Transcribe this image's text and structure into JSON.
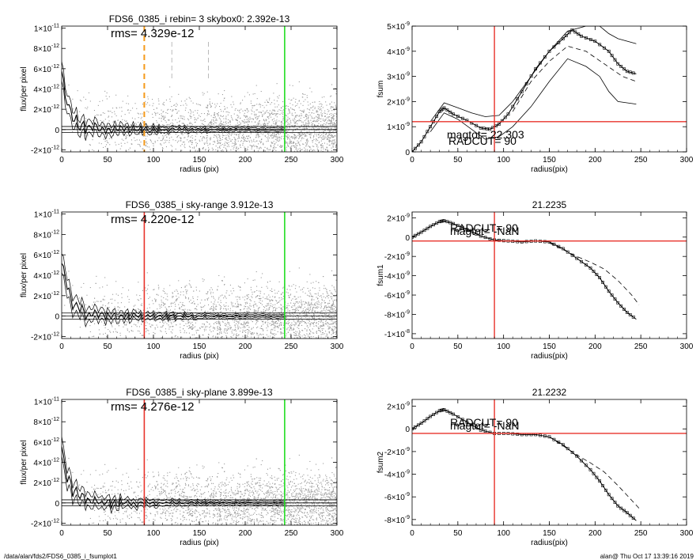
{
  "footer": {
    "left": "/data/alan/fds2/FDS6_0385_i_fsumplot1",
    "right": "alan@  Thu Oct 17 13:39:16 2019"
  },
  "colors": {
    "red": "#e8332b",
    "green": "#22dd22",
    "orange": "#f59a1a",
    "scatter": "#9a9a9a",
    "profile": "#000000"
  },
  "chart_data": [
    {
      "type": "scatter",
      "panel": "left-1",
      "title": "FDS6_0385_i rebin= 3    skybox0:  2.392e-13",
      "annotation": "rms= 4.329e-12",
      "xlabel": "radius (pix)",
      "ylabel": "flux/per pixel",
      "xlim": [
        0,
        300
      ],
      "ylim": [
        -2.2e-12,
        1.02e-11
      ],
      "xticks": [
        "0",
        "50",
        "100",
        "150",
        "200",
        "250",
        "300"
      ],
      "yticks": [
        {
          "v": -2e-12,
          "m": "-2×10",
          "e": "-12"
        },
        {
          "v": 0,
          "m": "0",
          "e": ""
        },
        {
          "v": 2e-12,
          "m": "2×10",
          "e": "-12"
        },
        {
          "v": 4e-12,
          "m": "4×10",
          "e": "-12"
        },
        {
          "v": 6e-12,
          "m": "6×10",
          "e": "-12"
        },
        {
          "v": 8e-12,
          "m": "8×10",
          "e": "-12"
        },
        {
          "v": 1e-11,
          "m": "1×10",
          "e": "-11"
        }
      ],
      "vlines": [
        {
          "x": 90,
          "color": "orange",
          "dash": true
        },
        {
          "x": 243,
          "color": "green",
          "dash": false
        }
      ],
      "gray_dashes": [
        120,
        160
      ],
      "hlines": [
        0,
        3e-13,
        -3e-13
      ],
      "scatter_radius_max": 300,
      "scatter_points": 2600
    },
    {
      "type": "scatter",
      "panel": "left-2",
      "title": "FDS6_0385_i sky-range  3.912e-13",
      "annotation": "rms= 4.220e-12",
      "xlabel": "radius (pix)",
      "ylabel": "flux/per pixel",
      "xlim": [
        0,
        300
      ],
      "ylim": [
        -2.2e-12,
        1.02e-11
      ],
      "xticks": [
        "0",
        "50",
        "100",
        "150",
        "200",
        "250",
        "300"
      ],
      "yticks": [
        {
          "v": -2e-12,
          "m": "-2×10",
          "e": "-12"
        },
        {
          "v": 0,
          "m": "0",
          "e": ""
        },
        {
          "v": 2e-12,
          "m": "2×10",
          "e": "-12"
        },
        {
          "v": 4e-12,
          "m": "4×10",
          "e": "-12"
        },
        {
          "v": 6e-12,
          "m": "6×10",
          "e": "-12"
        },
        {
          "v": 8e-12,
          "m": "8×10",
          "e": "-12"
        },
        {
          "v": 1e-11,
          "m": "1×10",
          "e": "-11"
        }
      ],
      "vlines": [
        {
          "x": 90,
          "color": "red",
          "dash": false
        },
        {
          "x": 243,
          "color": "green",
          "dash": false
        }
      ],
      "gray_dashes": [],
      "hlines": [
        0,
        3e-13,
        -3e-13
      ],
      "scatter_radius_max": 300,
      "scatter_points": 2600
    },
    {
      "type": "scatter",
      "panel": "left-3",
      "title": "FDS6_0385_i sky-plane  3.899e-13",
      "annotation": "rms= 4.276e-12",
      "xlabel": "radius (pix)",
      "ylabel": "flux/per pixel",
      "xlim": [
        0,
        300
      ],
      "ylim": [
        -2.2e-12,
        1.02e-11
      ],
      "xticks": [
        "0",
        "50",
        "100",
        "150",
        "200",
        "250",
        "300"
      ],
      "yticks": [
        {
          "v": -2e-12,
          "m": "-2×10",
          "e": "-12"
        },
        {
          "v": 0,
          "m": "0",
          "e": ""
        },
        {
          "v": 2e-12,
          "m": "2×10",
          "e": "-12"
        },
        {
          "v": 4e-12,
          "m": "4×10",
          "e": "-12"
        },
        {
          "v": 6e-12,
          "m": "6×10",
          "e": "-12"
        },
        {
          "v": 8e-12,
          "m": "8×10",
          "e": "-12"
        },
        {
          "v": 1e-11,
          "m": "1×10",
          "e": "-11"
        }
      ],
      "vlines": [
        {
          "x": 90,
          "color": "red",
          "dash": false
        },
        {
          "x": 243,
          "color": "green",
          "dash": false
        }
      ],
      "gray_dashes": [],
      "hlines": [
        0,
        3e-13,
        -3e-13
      ],
      "scatter_radius_max": 300,
      "scatter_points": 2600
    },
    {
      "type": "line",
      "panel": "right-1",
      "title": "",
      "annotations": [
        "magtot=  22.303",
        "RADCUT=  90"
      ],
      "xlabel": "radius(pix)",
      "ylabel": "fsum",
      "xlim": [
        0,
        300
      ],
      "ylim": [
        0,
        5e-09
      ],
      "xticks": [
        "0",
        "50",
        "100",
        "150",
        "200",
        "250",
        "300"
      ],
      "yticks": [
        {
          "v": 0,
          "m": "0",
          "e": ""
        },
        {
          "v": 1e-09,
          "m": "1×10",
          "e": "-9"
        },
        {
          "v": 2e-09,
          "m": "2×10",
          "e": "-9"
        },
        {
          "v": 3e-09,
          "m": "3×10",
          "e": "-9"
        },
        {
          "v": 4e-09,
          "m": "4×10",
          "e": "-9"
        },
        {
          "v": 5e-09,
          "m": "5×10",
          "e": "-9"
        }
      ],
      "vline_x": 90,
      "hline_y": 1.2e-09,
      "curve": {
        "x": [
          0,
          10,
          20,
          30,
          35,
          45,
          60,
          75,
          85,
          95,
          105,
          120,
          135,
          150,
          165,
          175,
          185,
          200,
          215,
          225,
          235,
          245
        ],
        "y": [
          0,
          4e-10,
          1e-09,
          1.6e-09,
          1.75e-09,
          1.5e-09,
          1.25e-09,
          9.5e-10,
          9e-10,
          1.1e-09,
          1.5e-09,
          2.4e-09,
          3.3e-09,
          4e-09,
          4.5e-09,
          4.85e-09,
          4.6e-09,
          4.4e-09,
          4e-09,
          3.5e-09,
          3.2e-09,
          3.1e-09
        ]
      },
      "dashed": {
        "x": [
          110,
          130,
          150,
          170,
          190,
          210,
          230,
          245
        ],
        "y": [
          1.6e-09,
          2.8e-09,
          3.6e-09,
          4.2e-09,
          4e-09,
          3.5e-09,
          3e-09,
          2.8e-09
        ]
      },
      "upper": {
        "x": [
          20,
          35,
          50,
          65,
          80,
          95,
          110,
          130,
          150,
          170,
          190,
          205,
          215,
          225,
          245
        ],
        "y": [
          1.2e-09,
          1.95e-09,
          1.75e-09,
          1.55e-09,
          1.4e-09,
          1.45e-09,
          2e-09,
          3e-09,
          4e-09,
          4.8e-09,
          5e-09,
          5e-09,
          4.7e-09,
          4.5e-09,
          4.3e-09
        ]
      },
      "lower": {
        "x": [
          20,
          35,
          50,
          65,
          80,
          95,
          110,
          130,
          150,
          170,
          190,
          205,
          215,
          225,
          245
        ],
        "y": [
          8e-10,
          1.55e-09,
          1.3e-09,
          9e-10,
          5e-10,
          6e-10,
          1e-09,
          1.8e-09,
          2.8e-09,
          3.7e-09,
          3.4e-09,
          3e-09,
          2.4e-09,
          2e-09,
          1.9e-09
        ]
      }
    },
    {
      "type": "line",
      "panel": "right-2",
      "title": "21.2235",
      "annotations": [
        "magtot=  -NaN",
        "RADCUT=  90"
      ],
      "xlabel": "radius(pix)",
      "ylabel": "fsum1",
      "xlim": [
        0,
        300
      ],
      "ylim": [
        -1.05e-08,
        2.6e-09
      ],
      "xticks": [
        "0",
        "50",
        "100",
        "150",
        "200",
        "250",
        "300"
      ],
      "yticks": [
        {
          "v": -1e-08,
          "m": "-1×10",
          "e": "-8"
        },
        {
          "v": -8e-09,
          "m": "-8×10",
          "e": "-9"
        },
        {
          "v": -6e-09,
          "m": "-6×10",
          "e": "-9"
        },
        {
          "v": -4e-09,
          "m": "-4×10",
          "e": "-9"
        },
        {
          "v": -2e-09,
          "m": "-2×10",
          "e": "-9"
        },
        {
          "v": 0,
          "m": "0",
          "e": ""
        },
        {
          "v": 2e-09,
          "m": "2×10",
          "e": "-9"
        }
      ],
      "vline_x": 90,
      "hline_y": -4e-10,
      "curve": {
        "x": [
          0,
          10,
          20,
          30,
          35,
          45,
          60,
          75,
          90,
          105,
          120,
          135,
          150,
          165,
          180,
          195,
          205,
          215,
          225,
          235,
          245
        ],
        "y": [
          0,
          5e-10,
          1.1e-09,
          1.6e-09,
          1.7e-09,
          1.4e-09,
          8e-10,
          1e-10,
          -3e-10,
          -4e-10,
          -5e-10,
          -4e-10,
          -5e-10,
          -1.2e-09,
          -2.2e-09,
          -3.2e-09,
          -4.2e-09,
          -5.6e-09,
          -6.8e-09,
          -7.8e-09,
          -8.5e-09
        ]
      },
      "dashed": {
        "x": [
          150,
          165,
          180,
          195,
          210,
          225,
          240,
          248
        ],
        "y": [
          -6e-10,
          -1.3e-09,
          -2e-09,
          -2.6e-09,
          -3.3e-09,
          -4.5e-09,
          -6e-09,
          -7e-09
        ]
      }
    },
    {
      "type": "line",
      "panel": "right-3",
      "title": "21.2232",
      "annotations": [
        "magtot=  -NaN",
        "RADCUT=  90"
      ],
      "xlabel": "radius(pix)",
      "ylabel": "fsum2",
      "xlim": [
        0,
        300
      ],
      "ylim": [
        -8.5e-09,
        2.6e-09
      ],
      "xticks": [
        "0",
        "50",
        "100",
        "150",
        "200",
        "250",
        "300"
      ],
      "yticks": [
        {
          "v": -8e-09,
          "m": "-8×10",
          "e": "-9"
        },
        {
          "v": -6e-09,
          "m": "-6×10",
          "e": "-9"
        },
        {
          "v": -4e-09,
          "m": "-4×10",
          "e": "-9"
        },
        {
          "v": -2e-09,
          "m": "-2×10",
          "e": "-9"
        },
        {
          "v": 0,
          "m": "0",
          "e": ""
        },
        {
          "v": 2e-09,
          "m": "2×10",
          "e": "-9"
        }
      ],
      "vline_x": 90,
      "hline_y": -4e-10,
      "curve": {
        "x": [
          0,
          10,
          20,
          30,
          35,
          45,
          60,
          75,
          90,
          105,
          120,
          135,
          150,
          165,
          180,
          195,
          205,
          215,
          225,
          235,
          245
        ],
        "y": [
          0,
          5e-10,
          1.1e-09,
          1.6e-09,
          1.7e-09,
          1.3e-09,
          6e-10,
          -1e-10,
          -4e-10,
          -4e-10,
          -5e-10,
          -5e-10,
          -7e-10,
          -1.4e-09,
          -2.4e-09,
          -3.6e-09,
          -4.6e-09,
          -5.8e-09,
          -6.8e-09,
          -7.4e-09,
          -8.1e-09
        ]
      },
      "dashed": {
        "x": [
          150,
          165,
          180,
          195,
          210,
          225,
          240,
          248
        ],
        "y": [
          -7e-10,
          -1.5e-09,
          -2.3e-09,
          -3e-09,
          -3.8e-09,
          -5e-09,
          -6.3e-09,
          -7e-09
        ]
      }
    }
  ]
}
